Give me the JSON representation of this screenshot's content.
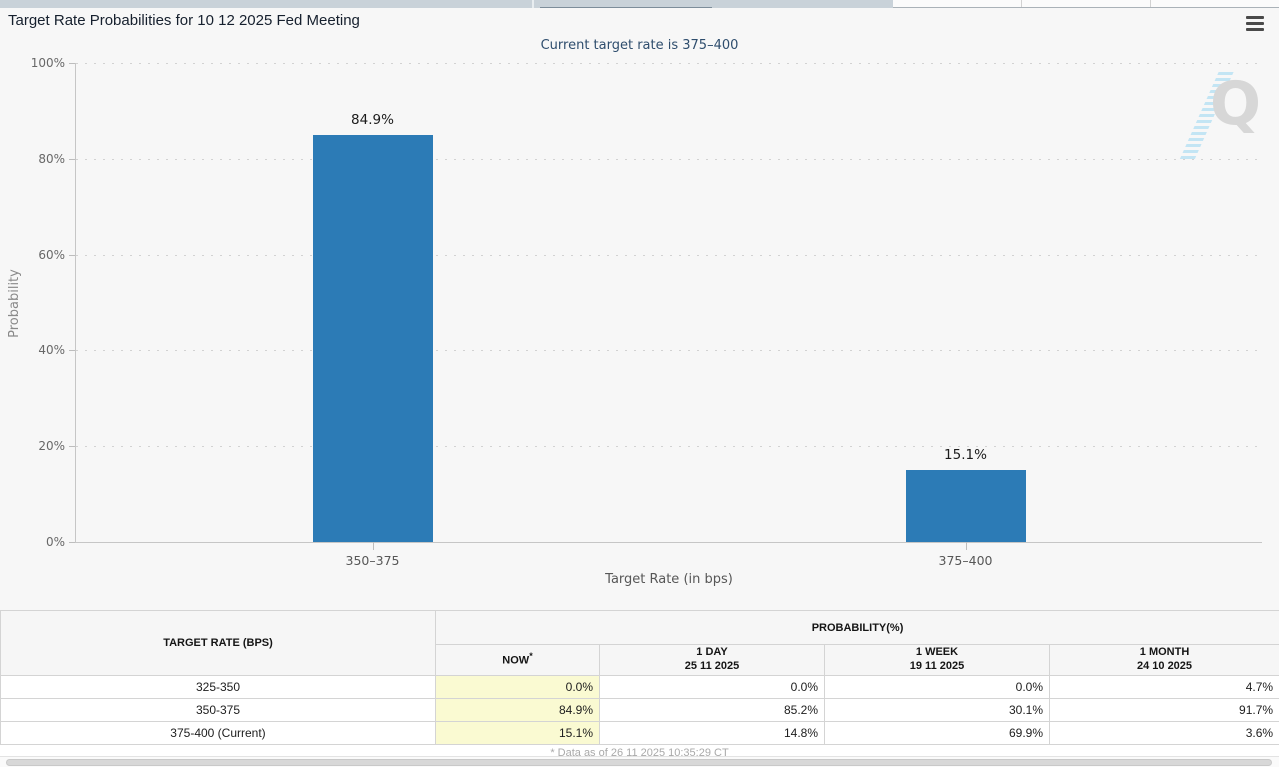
{
  "header": {
    "title": "Target Rate Probabilities for 10 12 2025 Fed Meeting"
  },
  "icons": {
    "chart_menu": "hamburger-menu"
  },
  "chart_data": {
    "type": "bar",
    "title": "Target Rate Probabilities for 10 12 2025 Fed Meeting",
    "subtitle": "Current target rate is 375–400",
    "categories": [
      "350–375",
      "375–400"
    ],
    "values": [
      84.9,
      15.1
    ],
    "value_labels": [
      "84.9%",
      "15.1%"
    ],
    "xlabel": "Target Rate (in bps)",
    "ylabel": "Probability",
    "yticks": [
      "100%",
      "80%",
      "60%",
      "40%",
      "20%",
      "0%"
    ],
    "ylim": [
      0,
      100
    ],
    "grid": "horizontal-dotted",
    "legend": "none",
    "bar_color": "#2c7bb6",
    "background_color": "#f7f7f7"
  },
  "watermark": {
    "letter": "Q"
  },
  "table": {
    "rate_header": "TARGET RATE (BPS)",
    "prob_header": "PROBABILITY(%)",
    "subheaders": [
      {
        "label": "NOW",
        "sup": "*"
      },
      {
        "label": "1 DAY",
        "date": "25 11 2025"
      },
      {
        "label": "1 WEEK",
        "date": "19 11 2025"
      },
      {
        "label": "1 MONTH",
        "date": "24 10 2025"
      }
    ],
    "rows": [
      {
        "rate": "325-350",
        "now": "0.0%",
        "day": "0.0%",
        "week": "0.0%",
        "month": "4.7%"
      },
      {
        "rate": "350-375",
        "now": "84.9%",
        "day": "85.2%",
        "week": "30.1%",
        "month": "91.7%"
      },
      {
        "rate": "375-400 (Current)",
        "now": "15.1%",
        "day": "14.8%",
        "week": "69.9%",
        "month": "3.6%"
      }
    ],
    "now_highlight_color": "#fafad2"
  },
  "footer": {
    "note": "* Data as of 26 11 2025 10:35:29 CT"
  }
}
